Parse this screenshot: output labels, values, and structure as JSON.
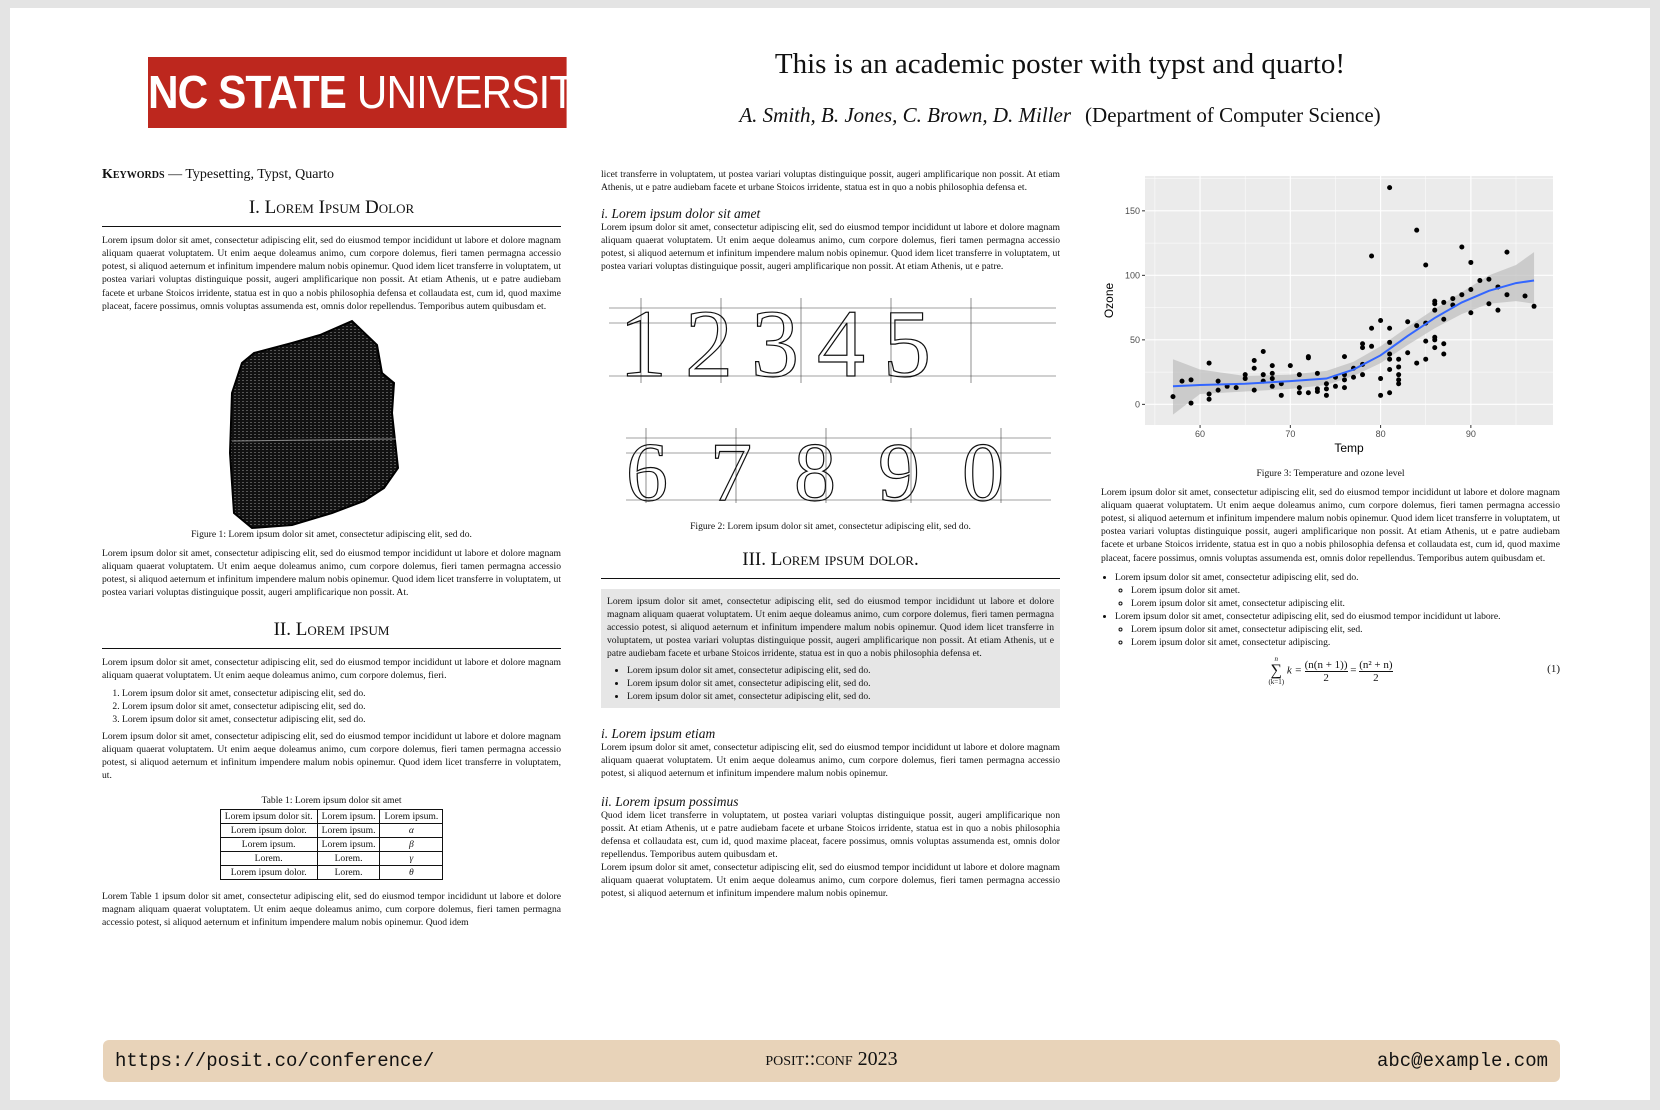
{
  "header": {
    "logo_bold": "NC STATE",
    "logo_light": "UNIVERSITY",
    "title": "This is an academic poster with typst and quarto!",
    "authors": "A. Smith, B. Jones, C. Brown, D. Miller",
    "department": "(Department of Computer Science)"
  },
  "col1": {
    "keywords_label": "Keywords",
    "keywords": " — Typesetting, Typst, Quarto",
    "h1": "I. Lorem Ipsum Dolor",
    "p1": "Lorem ipsum dolor sit amet, consectetur adipiscing elit, sed do eiusmod tempor incididunt ut labore et dolore magnam aliquam quaerat voluptatem. Ut enim aeque doleamus animo, cum corpore dolemus, fieri tamen permagna accessio potest, si aliquod aeternum et infinitum impendere malum nobis opinemur. Quod idem licet transferre in voluptatem, ut postea variari voluptas distinguique possit, augeri amplificarique non possit. At etiam Athenis, ut e patre audiebam facete et urbane Stoicos irridente, statua est in quo a nobis philosophia defensa et collaudata est, cum id, quod maxime placeat, facere possimus, omnis voluptas assumenda est, omnis dolor repellendus. Temporibus autem quibusdam et.",
    "fig1_caption": "Figure 1:  Lorem ipsum dolor sit amet, consectetur adipiscing elit, sed do.",
    "p2": "Lorem ipsum dolor sit amet, consectetur adipiscing elit, sed do eiusmod tempor incididunt ut labore et dolore magnam aliquam quaerat voluptatem. Ut enim aeque doleamus animo, cum corpore dolemus, fieri tamen permagna accessio potest, si aliquod aeternum et infinitum impendere malum nobis opinemur. Quod idem licet transferre in voluptatem, ut postea variari voluptas distinguique possit, augeri amplificarique non possit. At.",
    "h2": "II. Lorem ipsum",
    "p3": "Lorem ipsum dolor sit amet, consectetur adipiscing elit, sed do eiusmod tempor incididunt ut labore et dolore magnam aliquam quaerat voluptatem. Ut enim aeque doleamus animo, cum corpore dolemus, fieri.",
    "list": [
      "Lorem ipsum dolor sit amet, consectetur adipiscing elit, sed do.",
      "Lorem ipsum dolor sit amet, consectetur adipiscing elit, sed do.",
      "Lorem ipsum dolor sit amet, consectetur adipiscing elit, sed do."
    ],
    "p4": "Lorem ipsum dolor sit amet, consectetur adipiscing elit, sed do eiusmod tempor incididunt ut labore et dolore magnam aliquam quaerat voluptatem. Ut enim aeque doleamus animo, cum corpore dolemus, fieri tamen permagna accessio potest, si aliquod aeternum et infinitum impendere malum nobis opinemur. Quod idem licet transferre in voluptatem, ut.",
    "table_caption": "Table 1:  Lorem ipsum dolor sit amet",
    "table": [
      [
        "Lorem ipsum dolor sit.",
        "Lorem ipsum.",
        "Lorem ipsum."
      ],
      [
        "Lorem ipsum dolor.",
        "Lorem ipsum.",
        "α"
      ],
      [
        "Lorem ipsum.",
        "Lorem ipsum.",
        "β"
      ],
      [
        "Lorem.",
        "Lorem.",
        "γ"
      ],
      [
        "Lorem ipsum dolor.",
        "Lorem.",
        "θ"
      ]
    ],
    "p5": "Lorem Table 1 ipsum dolor sit amet, consectetur adipiscing elit, sed do eiusmod tempor incididunt ut labore et dolore magnam aliquam quaerat voluptatem. Ut enim aeque doleamus animo, cum corpore dolemus, fieri tamen permagna accessio potest, si aliquod aeternum et infinitum impendere malum nobis opinemur. Quod idem"
  },
  "col2": {
    "p0": "licet transferre in voluptatem, ut postea variari voluptas distinguique possit, augeri amplificarique non possit. At etiam Athenis, ut e patre audiebam facete et urbane Stoicos irridente, statua est in quo a nobis philosophia defensa et.",
    "h_a": "i. Lorem ipsum dolor sit amet",
    "p1": "Lorem ipsum dolor sit amet, consectetur adipiscing elit, sed do eiusmod tempor incididunt ut labore et dolore magnam aliquam quaerat voluptatem. Ut enim aeque doleamus animo, cum corpore dolemus, fieri tamen permagna accessio potest, si aliquod aeternum et infinitum impendere malum nobis opinemur. Quod idem licet transferre in voluptatem, ut postea variari voluptas distinguique possit, augeri amplificarique non possit. At etiam Athenis, ut e patre.",
    "numerals_row1": "12345",
    "numerals_row2": "67890",
    "fig2_caption": "Figure 2:  Lorem ipsum dolor sit amet, consectetur adipiscing elit, sed do.",
    "h3": "III. Lorem ipsum dolor.",
    "box_p": "Lorem ipsum dolor sit amet, consectetur adipiscing elit, sed do eiusmod tempor incididunt ut labore et dolore magnam aliquam quaerat voluptatem. Ut enim aeque doleamus animo, cum corpore dolemus, fieri tamen permagna accessio potest, si aliquod aeternum et infinitum impendere malum nobis opinemur. Quod idem licet transferre in voluptatem, ut postea variari voluptas distinguique possit, augeri amplificarique non possit. At etiam Athenis, ut e patre audiebam facete et urbane Stoicos irridente, statua est in quo a nobis philosophia defensa et.",
    "box_list": [
      "Lorem ipsum dolor sit amet, consectetur adipiscing elit, sed do.",
      "Lorem ipsum dolor sit amet, consectetur adipiscing elit, sed do.",
      "Lorem ipsum dolor sit amet, consectetur adipiscing elit, sed do."
    ],
    "h_b": "i. Lorem ipsum etiam",
    "p2": "Lorem ipsum dolor sit amet, consectetur adipiscing elit, sed do eiusmod tempor incididunt ut labore et dolore magnam aliquam quaerat voluptatem. Ut enim aeque doleamus animo, cum corpore dolemus, fieri tamen permagna accessio potest, si aliquod aeternum et infinitum impendere malum nobis opinemur.",
    "h_c": "ii. Lorem ipsum possimus",
    "p3": "Quod idem licet transferre in voluptatem, ut postea variari voluptas distinguique possit, augeri amplificarique non possit. At etiam Athenis, ut e patre audiebam facete et urbane Stoicos irridente, statua est in quo a nobis philosophia defensa et collaudata est, cum id, quod maxime placeat, facere possimus, omnis voluptas assumenda est, omnis dolor repellendus. Temporibus autem quibusdam et.",
    "p4": "Lorem ipsum dolor sit amet, consectetur adipiscing elit, sed do eiusmod tempor incididunt ut labore et dolore magnam aliquam quaerat voluptatem. Ut enim aeque doleamus animo, cum corpore dolemus, fieri tamen permagna accessio potest, si aliquod aeternum et infinitum impendere malum nobis opinemur."
  },
  "col3": {
    "fig3_caption": "Figure 3:  Temperature and ozone level",
    "p1": "Lorem ipsum dolor sit amet, consectetur adipiscing elit, sed do eiusmod tempor incididunt ut labore et dolore magnam aliquam quaerat voluptatem. Ut enim aeque doleamus animo, cum corpore dolemus, fieri tamen permagna accessio potest, si aliquod aeternum et infinitum impendere malum nobis opinemur. Quod idem licet transferre in voluptatem, ut postea variari voluptas distinguique possit, augeri amplificarique non possit. At etiam Athenis, ut e patre audiebam facete et urbane Stoicos irridente, statua est in quo a nobis philosophia defensa et collaudata est, cum id, quod maxime placeat, facere possimus, omnis voluptas assumenda est, omnis dolor repellendus. Temporibus autem quibusdam et.",
    "b1": "Lorem ipsum dolor sit amet, consectetur adipiscing elit, sed do.",
    "b1a": "Lorem ipsum dolor sit amet.",
    "b1b": "Lorem ipsum dolor sit amet, consectetur adipiscing elit.",
    "b2": "Lorem ipsum dolor sit amet, consectetur adipiscing elit, sed do eiusmod tempor incididunt ut labore.",
    "b2a": "Lorem ipsum dolor sit amet, consectetur adipiscing elit, sed.",
    "b2b": "Lorem ipsum dolor sit amet, consectetur adipiscing.",
    "eq_sum_top": "n",
    "eq_sum_bottom": "(k=1)",
    "eq_lhs": "k =",
    "eq_n1": "(n(n + 1))",
    "eq_d1": "2",
    "eq_eq": "=",
    "eq_n2": "(n² + n)",
    "eq_d2": "2",
    "eq_num": "(1)"
  },
  "chart_data": {
    "type": "scatter",
    "xlabel": "Temp",
    "ylabel": "Ozone",
    "xlim": [
      53.9,
      99.1
    ],
    "ylim": [
      -16,
      177
    ],
    "xticks": [
      60,
      70,
      80,
      90
    ],
    "yticks": [
      0,
      50,
      100,
      150
    ],
    "grid": true,
    "colors": {
      "panel": "#ebebeb",
      "points": "#000000",
      "smooth": "#3366ff",
      "band": "#bdbdbd"
    },
    "points": [
      [
        57,
        6
      ],
      [
        58,
        18
      ],
      [
        59,
        19
      ],
      [
        59,
        1
      ],
      [
        61,
        32
      ],
      [
        61,
        8
      ],
      [
        61,
        4
      ],
      [
        62,
        18
      ],
      [
        62,
        11
      ],
      [
        63,
        14
      ],
      [
        64,
        13
      ],
      [
        65,
        23
      ],
      [
        65,
        20
      ],
      [
        66,
        34
      ],
      [
        66,
        28
      ],
      [
        66,
        11
      ],
      [
        67,
        41
      ],
      [
        67,
        23
      ],
      [
        67,
        18
      ],
      [
        68,
        30
      ],
      [
        68,
        24
      ],
      [
        68,
        20
      ],
      [
        68,
        14
      ],
      [
        69,
        16
      ],
      [
        69,
        7
      ],
      [
        70,
        30
      ],
      [
        71,
        23
      ],
      [
        71,
        13
      ],
      [
        71,
        9
      ],
      [
        72,
        37
      ],
      [
        72,
        36
      ],
      [
        72,
        9
      ],
      [
        73,
        24
      ],
      [
        73,
        12
      ],
      [
        73,
        10
      ],
      [
        74,
        16
      ],
      [
        74,
        12
      ],
      [
        74,
        7
      ],
      [
        75,
        21
      ],
      [
        75,
        14
      ],
      [
        76,
        37
      ],
      [
        76,
        23
      ],
      [
        76,
        19
      ],
      [
        76,
        13
      ],
      [
        77,
        28
      ],
      [
        77,
        21
      ],
      [
        78,
        47
      ],
      [
        78,
        44
      ],
      [
        78,
        31
      ],
      [
        78,
        23
      ],
      [
        79,
        115
      ],
      [
        79,
        59
      ],
      [
        79,
        45
      ],
      [
        80,
        65
      ],
      [
        80,
        20
      ],
      [
        80,
        7
      ],
      [
        81,
        168
      ],
      [
        81,
        59
      ],
      [
        81,
        48
      ],
      [
        81,
        39
      ],
      [
        81,
        35
      ],
      [
        81,
        27
      ],
      [
        81,
        9
      ],
      [
        82,
        35
      ],
      [
        82,
        29
      ],
      [
        82,
        23
      ],
      [
        82,
        19
      ],
      [
        82,
        16
      ],
      [
        83,
        64
      ],
      [
        83,
        40
      ],
      [
        84,
        135
      ],
      [
        84,
        61
      ],
      [
        84,
        32
      ],
      [
        85,
        108
      ],
      [
        85,
        63
      ],
      [
        85,
        49
      ],
      [
        85,
        35
      ],
      [
        86,
        80
      ],
      [
        86,
        78
      ],
      [
        86,
        73
      ],
      [
        86,
        52
      ],
      [
        86,
        50
      ],
      [
        86,
        44
      ],
      [
        87,
        79
      ],
      [
        87,
        66
      ],
      [
        87,
        47
      ],
      [
        87,
        39
      ],
      [
        88,
        82
      ],
      [
        88,
        77
      ],
      [
        89,
        122
      ],
      [
        89,
        85
      ],
      [
        90,
        110
      ],
      [
        90,
        89
      ],
      [
        90,
        71
      ],
      [
        91,
        96
      ],
      [
        92,
        97
      ],
      [
        92,
        78
      ],
      [
        93,
        91
      ],
      [
        93,
        73
      ],
      [
        94,
        118
      ],
      [
        94,
        85
      ],
      [
        96,
        84
      ],
      [
        97,
        76
      ]
    ],
    "smooth": [
      [
        57,
        14
      ],
      [
        60,
        15
      ],
      [
        65,
        16
      ],
      [
        70,
        18
      ],
      [
        74,
        20
      ],
      [
        77,
        27
      ],
      [
        80,
        38
      ],
      [
        83,
        53
      ],
      [
        86,
        67
      ],
      [
        89,
        79
      ],
      [
        92,
        88
      ],
      [
        95,
        94
      ],
      [
        97,
        96
      ]
    ],
    "band": [
      [
        57,
        -8,
        35
      ],
      [
        60,
        8,
        27
      ],
      [
        65,
        10,
        22
      ],
      [
        70,
        12,
        23
      ],
      [
        74,
        15,
        26
      ],
      [
        77,
        22,
        33
      ],
      [
        80,
        32,
        45
      ],
      [
        83,
        46,
        60
      ],
      [
        86,
        59,
        74
      ],
      [
        89,
        70,
        87
      ],
      [
        92,
        78,
        100
      ],
      [
        95,
        80,
        108
      ],
      [
        97,
        78,
        118
      ]
    ]
  },
  "footer": {
    "url": "https://posit.co/conference/",
    "conf_name": "posit::conf",
    "conf_year": "2023",
    "email": "abc@example.com"
  }
}
